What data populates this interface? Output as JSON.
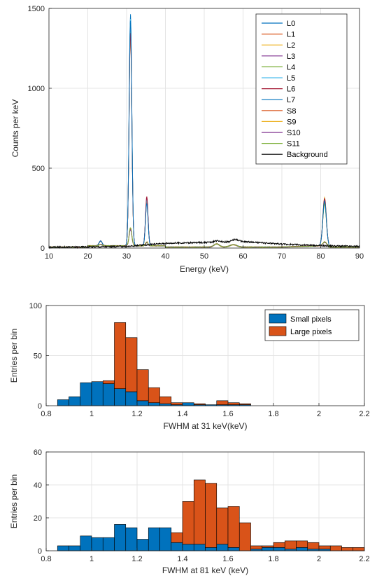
{
  "chart_data": [
    {
      "type": "line",
      "xlabel": "Energy (keV)",
      "ylabel": "Counts per keV",
      "xlim": [
        10,
        90
      ],
      "ylim": [
        0,
        1500
      ],
      "xticks": [
        10,
        20,
        30,
        40,
        50,
        60,
        70,
        80,
        90
      ],
      "yticks": [
        0,
        500,
        1000,
        1500
      ],
      "grid": true,
      "legend_position": "top-right",
      "series": [
        {
          "name": "L0",
          "color": "#0072bd",
          "peaks": [
            [
              31,
              1450
            ],
            [
              35.2,
              270
            ],
            [
              81,
              275
            ]
          ]
        },
        {
          "name": "L1",
          "color": "#d95319",
          "peaks": [
            [
              31,
              1400
            ],
            [
              35.2,
              290
            ],
            [
              81,
              285
            ]
          ]
        },
        {
          "name": "L2",
          "color": "#edb120",
          "peaks": [
            [
              31,
              1380
            ],
            [
              35.2,
              280
            ],
            [
              81,
              300
            ]
          ]
        },
        {
          "name": "L3",
          "color": "#7e2f8e",
          "peaks": [
            [
              31,
              1360
            ],
            [
              35.2,
              300
            ],
            [
              81,
              270
            ]
          ]
        },
        {
          "name": "L4",
          "color": "#77ac30",
          "peaks": [
            [
              31,
              1340
            ],
            [
              35.2,
              275
            ],
            [
              81,
              260
            ]
          ]
        },
        {
          "name": "L5",
          "color": "#4dbeee",
          "peaks": [
            [
              31,
              1420
            ],
            [
              35.2,
              285
            ],
            [
              81,
              290
            ]
          ]
        },
        {
          "name": "L6",
          "color": "#a2142f",
          "peaks": [
            [
              31,
              1330
            ],
            [
              35.2,
              310
            ],
            [
              81,
              295
            ]
          ]
        },
        {
          "name": "L7",
          "color": "#0072bd",
          "peaks": [
            [
              31,
              1410
            ],
            [
              35.2,
              265
            ],
            [
              81,
              280
            ]
          ]
        },
        {
          "name": "S8",
          "color": "#d95319",
          "peaks": [
            [
              31,
              110
            ],
            [
              35.2,
              25
            ],
            [
              81,
              25
            ]
          ]
        },
        {
          "name": "S9",
          "color": "#edb120",
          "peaks": [
            [
              31,
              105
            ],
            [
              35.2,
              22
            ],
            [
              81,
              22
            ]
          ]
        },
        {
          "name": "S10",
          "color": "#7e2f8e",
          "peaks": [
            [
              31,
              100
            ],
            [
              35.2,
              20
            ],
            [
              81,
              20
            ]
          ]
        },
        {
          "name": "S11",
          "color": "#77ac30",
          "peaks": [
            [
              31,
              115
            ],
            [
              35.2,
              24
            ],
            [
              81,
              24
            ]
          ]
        },
        {
          "name": "Background",
          "color": "#000000",
          "peaks": [
            [
              53.5,
              40
            ],
            [
              58,
              45
            ]
          ],
          "baseline": [
            [
              10,
              5
            ],
            [
              30,
              10
            ],
            [
              40,
              30
            ],
            [
              50,
              35
            ],
            [
              60,
              40
            ],
            [
              70,
              25
            ],
            [
              80,
              15
            ],
            [
              90,
              10
            ]
          ]
        }
      ]
    },
    {
      "type": "bar",
      "xlabel": "FWHM at 31 keV(keV)",
      "ylabel": "Entries per bin",
      "xlim": [
        0.8,
        2.2
      ],
      "ylim": [
        0,
        100
      ],
      "xticks": [
        0.8,
        1,
        1.2,
        1.4,
        1.6,
        1.8,
        2,
        2.2
      ],
      "yticks": [
        0,
        50,
        100
      ],
      "bin_width": 0.05,
      "stacked": true,
      "grid": true,
      "legend_position": "top-right",
      "bin_start": [
        0.85,
        0.9,
        0.95,
        1.0,
        1.05,
        1.1,
        1.15,
        1.2,
        1.25,
        1.3,
        1.35,
        1.4,
        1.45,
        1.5,
        1.55,
        1.6,
        1.65,
        1.7,
        1.75,
        1.8,
        1.85,
        1.9,
        1.95,
        2.0,
        2.05,
        2.1,
        2.15
      ],
      "series": [
        {
          "name": "Small pixels",
          "color": "#0072bd",
          "values": [
            6,
            9,
            23,
            24,
            22,
            17,
            14,
            5,
            3,
            2,
            1,
            3,
            1,
            1,
            1,
            1,
            1,
            0,
            0,
            0,
            0,
            0,
            0,
            0,
            0,
            0,
            0
          ]
        },
        {
          "name": "Large pixels",
          "color": "#d95319",
          "values": [
            0,
            0,
            0,
            0,
            3,
            66,
            54,
            31,
            15,
            7,
            2,
            0,
            1,
            0,
            4,
            2,
            1,
            0,
            0,
            0,
            0,
            0,
            0,
            0,
            0,
            0,
            0
          ]
        }
      ]
    },
    {
      "type": "bar",
      "xlabel": "FWHM at 81 keV (keV)",
      "ylabel": "Entries per bin",
      "xlim": [
        0.8,
        2.2
      ],
      "ylim": [
        0,
        60
      ],
      "xticks": [
        0.8,
        1,
        1.2,
        1.4,
        1.6,
        1.8,
        2,
        2.2
      ],
      "yticks": [
        0,
        20,
        40,
        60
      ],
      "bin_width": 0.05,
      "stacked": true,
      "grid": true,
      "bin_start": [
        0.85,
        0.9,
        0.95,
        1.0,
        1.05,
        1.1,
        1.15,
        1.2,
        1.25,
        1.3,
        1.35,
        1.4,
        1.45,
        1.5,
        1.55,
        1.6,
        1.65,
        1.7,
        1.75,
        1.8,
        1.85,
        1.9,
        1.95,
        2.0,
        2.05,
        2.1,
        2.15
      ],
      "series": [
        {
          "name": "Small pixels",
          "color": "#0072bd",
          "values": [
            3,
            3,
            9,
            8,
            8,
            16,
            14,
            7,
            14,
            14,
            5,
            4,
            4,
            2,
            4,
            2,
            0,
            1,
            2,
            2,
            1,
            2,
            1,
            1,
            0,
            0,
            0
          ]
        },
        {
          "name": "Large pixels",
          "color": "#d95319",
          "values": [
            0,
            0,
            0,
            0,
            0,
            0,
            0,
            0,
            0,
            0,
            6,
            26,
            39,
            39,
            22,
            25,
            17,
            2,
            1,
            3,
            5,
            4,
            4,
            2,
            3,
            2,
            2
          ]
        }
      ]
    }
  ]
}
